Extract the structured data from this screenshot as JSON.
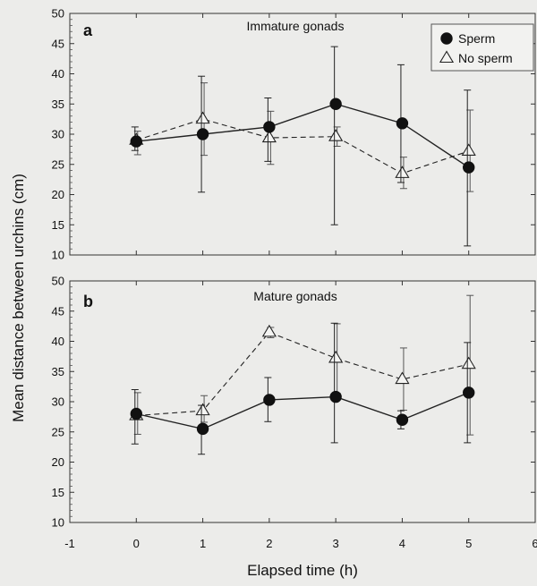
{
  "chart_data": {
    "type": "line",
    "ylabel": "Mean distance between urchins (cm)",
    "xlabel": "Elapsed time (h)",
    "xlim": [
      -1,
      6
    ],
    "ylim": [
      10,
      50
    ],
    "x_ticks": [
      "-1",
      "0",
      "1",
      "2",
      "3",
      "4",
      "5",
      "6"
    ],
    "y_ticks": [
      "10",
      "15",
      "20",
      "25",
      "30",
      "35",
      "40",
      "45",
      "50"
    ],
    "legend": [
      {
        "name": "Sperm",
        "marker": "filled-circle",
        "line": "solid"
      },
      {
        "name": "No sperm",
        "marker": "open-triangle",
        "line": "dashed"
      }
    ],
    "legend_position": "top-right",
    "panels": [
      {
        "letter": "a",
        "title": "Immature gonads",
        "series": [
          {
            "name": "Sperm",
            "x": [
              0,
              1,
              2,
              3,
              4,
              5
            ],
            "y": [
              28.8,
              30.0,
              31.2,
              35.0,
              31.8,
              24.5
            ],
            "err_low": [
              27.3,
              20.4,
              25.5,
              15.0,
              22.0,
              11.5
            ],
            "err_high": [
              31.2,
              39.6,
              36.0,
              44.5,
              41.5,
              37.3
            ]
          },
          {
            "name": "No sperm",
            "x": [
              0,
              1,
              2,
              3,
              4,
              5
            ],
            "y": [
              29.0,
              32.5,
              29.4,
              29.6,
              23.5,
              27.2
            ],
            "err_low": [
              26.6,
              26.5,
              25.0,
              28.0,
              21.0,
              20.5
            ],
            "err_high": [
              30.5,
              38.5,
              33.8,
              31.2,
              26.2,
              34.0
            ]
          }
        ]
      },
      {
        "letter": "b",
        "title": "Mature gonads",
        "series": [
          {
            "name": "Sperm",
            "x": [
              0,
              1,
              2,
              3,
              4,
              5
            ],
            "y": [
              28.0,
              25.5,
              30.3,
              30.8,
              27.0,
              31.5
            ],
            "err_low": [
              23.0,
              21.3,
              26.7,
              23.2,
              25.5,
              23.2
            ],
            "err_high": [
              32.0,
              29.4,
              34.0,
              43.0,
              28.5,
              39.8
            ]
          },
          {
            "name": "No sperm",
            "x": [
              0,
              1,
              2,
              3,
              4,
              5
            ],
            "y": [
              27.7,
              28.5,
              41.5,
              37.2,
              33.7,
              36.2
            ],
            "err_low": [
              24.6,
              26.6,
              40.6,
              31.4,
              28.6,
              24.5
            ],
            "err_high": [
              31.5,
              31.0,
              42.3,
              42.9,
              38.9,
              47.6
            ]
          }
        ]
      }
    ]
  }
}
